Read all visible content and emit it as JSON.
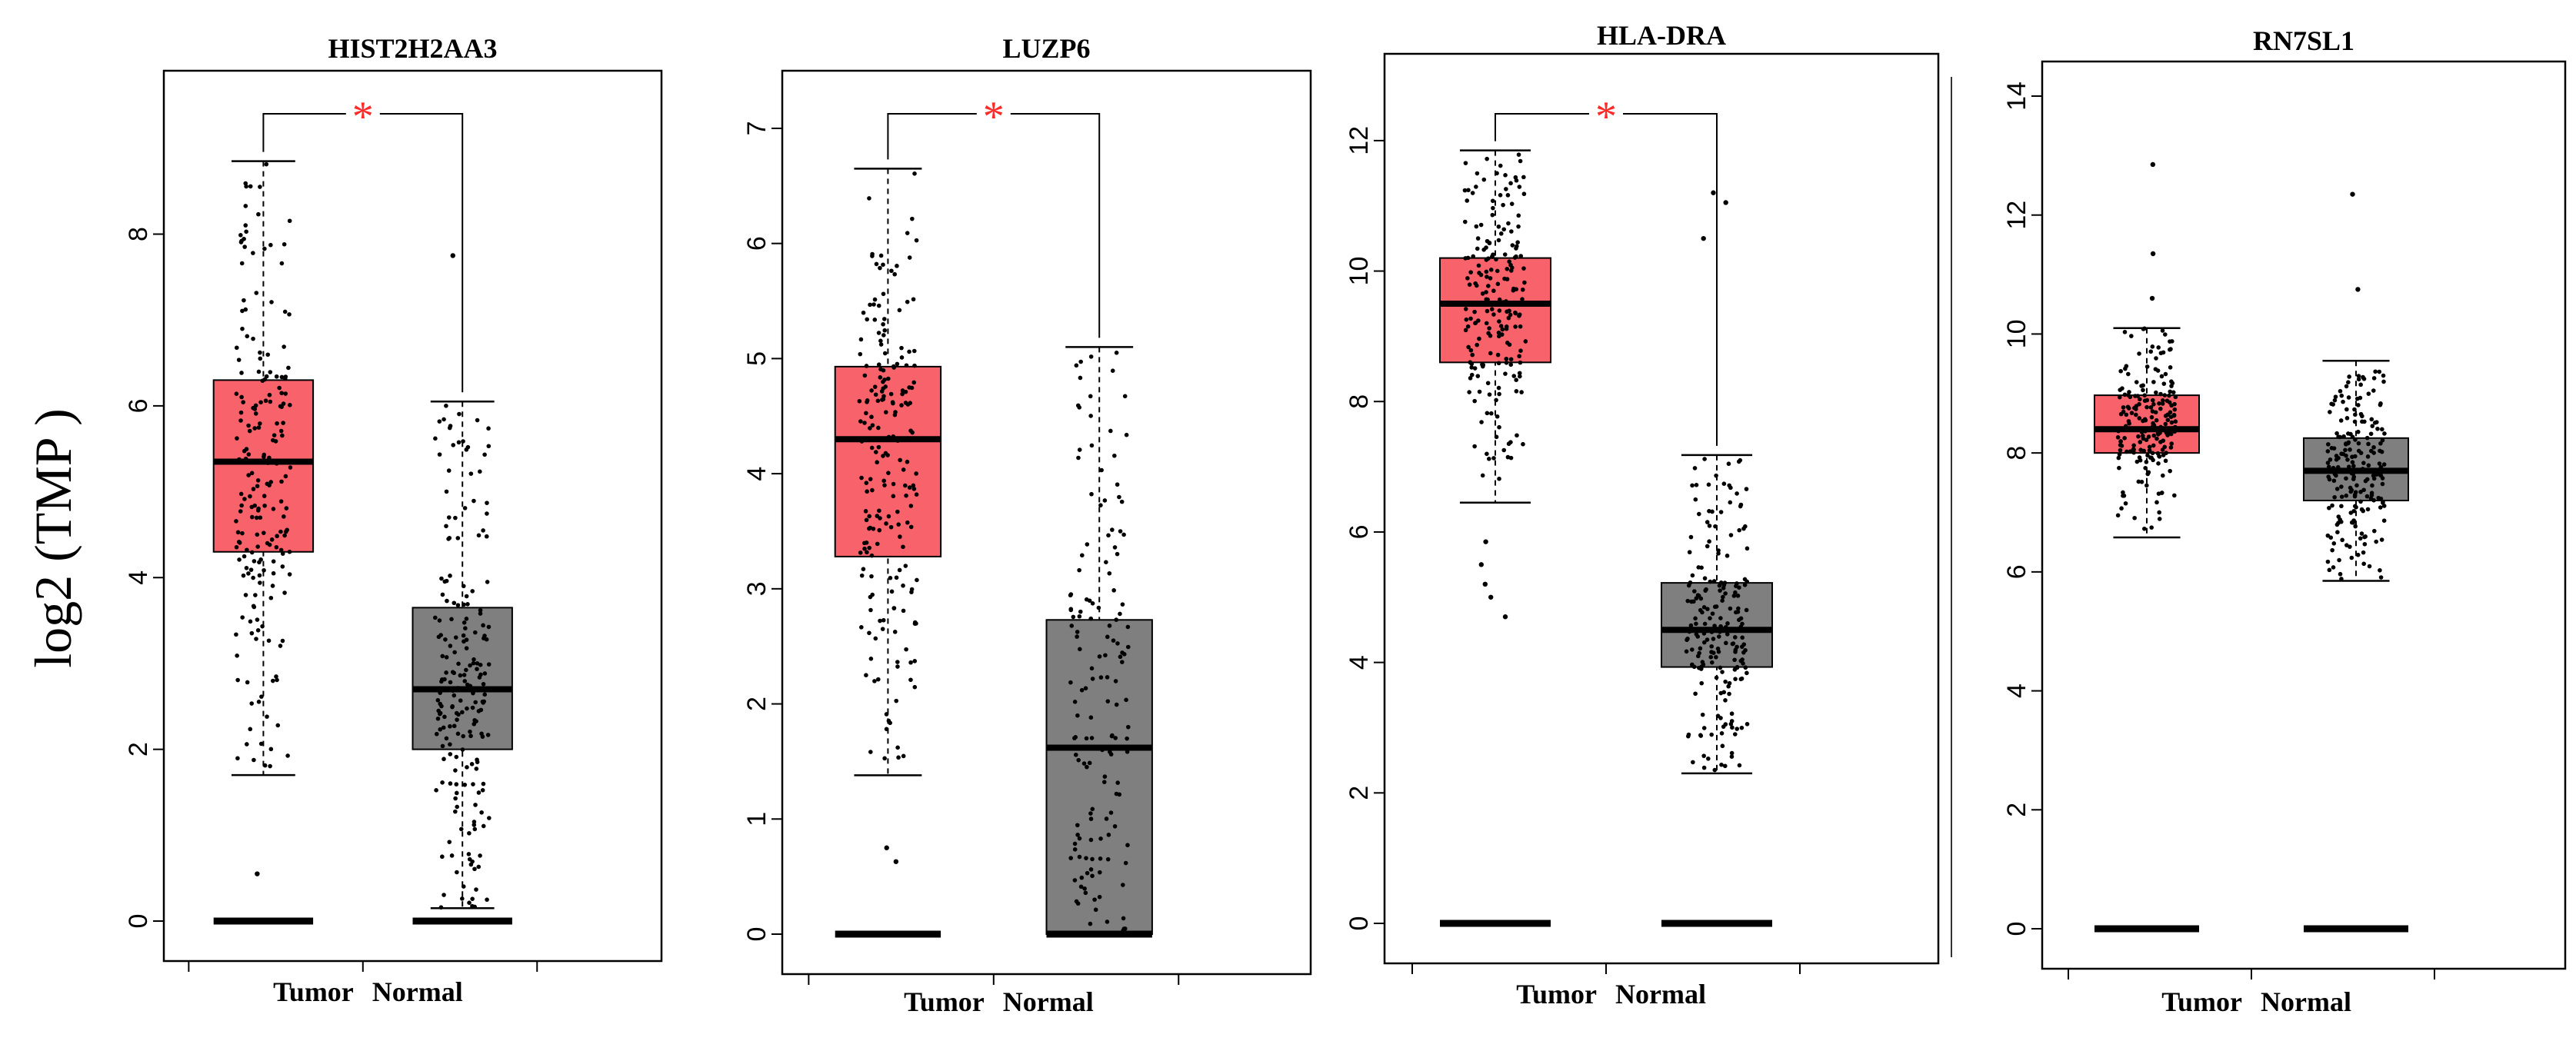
{
  "figure": {
    "ylabel": "log2 (TMP )",
    "colors": {
      "tumor": "#f8636b",
      "normal": "#7f7f7f",
      "star": "#ff2a2a",
      "point": "#000000"
    }
  },
  "chart_data": [
    {
      "type": "box",
      "title": "HIST2H2AA3",
      "categories": [
        "Tumor",
        "Normal"
      ],
      "ylim": [
        0,
        9.5
      ],
      "yticks": [
        0,
        2,
        4,
        6,
        8
      ],
      "significance": "*",
      "boxes": [
        {
          "name": "Tumor",
          "min": 1.7,
          "q1": 4.3,
          "median": 5.35,
          "q3": 6.3,
          "max": 8.85,
          "outliers": [
            0.55
          ]
        },
        {
          "name": "Normal",
          "min": 0.15,
          "q1": 2.0,
          "median": 2.7,
          "q3": 3.65,
          "max": 6.05,
          "outliers": [
            7.75
          ]
        }
      ]
    },
    {
      "type": "box",
      "title": "LUZP6",
      "categories": [
        "Tumor",
        "Normal"
      ],
      "ylim": [
        0,
        7.2
      ],
      "yticks": [
        0,
        1,
        2,
        3,
        4,
        5,
        6,
        7
      ],
      "significance": "*",
      "boxes": [
        {
          "name": "Tumor",
          "min": 1.38,
          "q1": 3.28,
          "median": 4.3,
          "q3": 4.93,
          "max": 6.65,
          "outliers": [
            0.63,
            0.75
          ]
        },
        {
          "name": "Normal",
          "min": 0.0,
          "q1": 0.0,
          "median": 1.62,
          "q3": 2.73,
          "max": 5.1,
          "outliers": []
        }
      ]
    },
    {
      "type": "box",
      "title": "HLA-DRA",
      "categories": [
        "Tumor",
        "Normal"
      ],
      "ylim": [
        0,
        12.8
      ],
      "yticks": [
        0,
        2,
        4,
        6,
        8,
        10,
        12
      ],
      "significance": "*",
      "boxes": [
        {
          "name": "Tumor",
          "min": 6.45,
          "q1": 8.6,
          "median": 9.5,
          "q3": 10.2,
          "max": 11.85,
          "outliers": [
            5.85,
            5.5,
            5.2,
            5.0,
            4.7
          ]
        },
        {
          "name": "Normal",
          "min": 2.3,
          "q1": 3.93,
          "median": 4.5,
          "q3": 5.22,
          "max": 7.18,
          "outliers": [
            10.5,
            11.05,
            11.2
          ]
        }
      ]
    },
    {
      "type": "box",
      "title": "RN7SL1",
      "categories": [
        "Tumor",
        "Normal"
      ],
      "ylim": [
        0,
        14
      ],
      "yticks": [
        0,
        2,
        4,
        6,
        8,
        10,
        12,
        14
      ],
      "significance": "",
      "boxes": [
        {
          "name": "Tumor",
          "min": 6.58,
          "q1": 8.0,
          "median": 8.4,
          "q3": 8.97,
          "max": 10.1,
          "outliers": [
            10.6,
            11.35,
            12.85
          ]
        },
        {
          "name": "Normal",
          "min": 5.85,
          "q1": 7.2,
          "median": 7.7,
          "q3": 8.25,
          "max": 9.55,
          "outliers": [
            10.75,
            12.35
          ]
        }
      ]
    }
  ]
}
